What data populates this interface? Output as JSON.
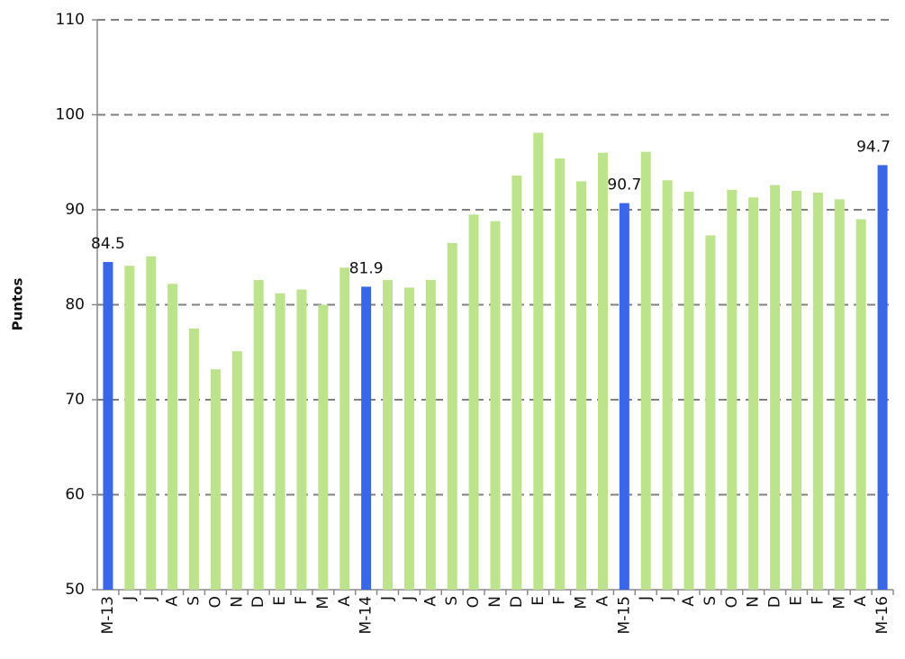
{
  "chart_data": {
    "type": "bar",
    "y_label": "Puntos",
    "categories": [
      "M-13",
      "J",
      "J",
      "A",
      "S",
      "O",
      "N",
      "D",
      "E",
      "F",
      "M",
      "A",
      "M-14",
      "J",
      "J",
      "A",
      "S",
      "O",
      "N",
      "D",
      "E",
      "F",
      "M",
      "A",
      "M-15",
      "J",
      "J",
      "A",
      "S",
      "O",
      "N",
      "D",
      "E",
      "F",
      "M",
      "A",
      "M-16"
    ],
    "series": [
      {
        "values": [
          84.5,
          84.1,
          85.1,
          82.2,
          77.5,
          73.2,
          75.1,
          82.6,
          81.2,
          81.6,
          80,
          83.9,
          81.9,
          82.6,
          81.8,
          82.6,
          86.5,
          89.5,
          88.8,
          93.6,
          98.1,
          95.4,
          93,
          96,
          90.7,
          96.1,
          93.1,
          91.9,
          87.3,
          92.1,
          91.3,
          92.6,
          92,
          91.8,
          91.1,
          89,
          94.7
        ],
        "value_labels": [
          "84.5",
          null,
          null,
          null,
          null,
          null,
          null,
          null,
          null,
          null,
          null,
          null,
          "81.9",
          null,
          null,
          null,
          null,
          null,
          null,
          null,
          null,
          null,
          null,
          null,
          "90.7",
          null,
          null,
          null,
          null,
          null,
          null,
          null,
          null,
          null,
          null,
          null,
          "94.7"
        ],
        "colors": [
          "#3a66e8",
          "#bde38c",
          "#bde38c",
          "#bde38c",
          "#bde38c",
          "#bde38c",
          "#bde38c",
          "#bde38c",
          "#bde38c",
          "#bde38c",
          "#bde38c",
          "#bde38c",
          "#3a66e8",
          "#bde38c",
          "#bde38c",
          "#bde38c",
          "#bde38c",
          "#bde38c",
          "#bde38c",
          "#bde38c",
          "#bde38c",
          "#bde38c",
          "#bde38c",
          "#bde38c",
          "#3a66e8",
          "#bde38c",
          "#bde38c",
          "#bde38c",
          "#bde38c",
          "#bde38c",
          "#bde38c",
          "#bde38c",
          "#bde38c",
          "#bde38c",
          "#bde38c",
          "#bde38c",
          "#3a66e8"
        ]
      }
    ],
    "ylim": [
      50,
      110
    ],
    "yticks": [
      50,
      60,
      70,
      80,
      90,
      100,
      110
    ],
    "grid": true
  }
}
